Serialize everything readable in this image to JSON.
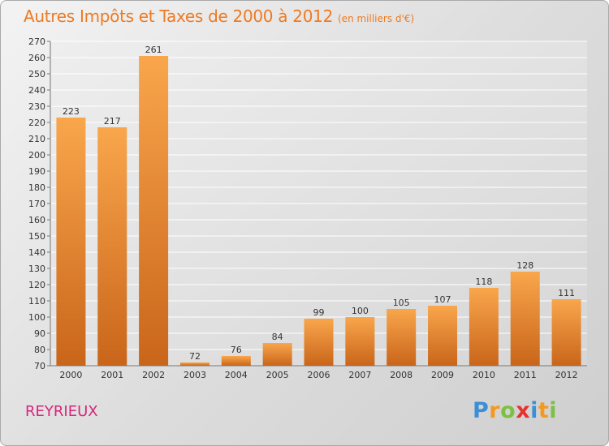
{
  "title": "Autres Impôts et Taxes de 2000 à 2012",
  "subtitle": "(en milliers d'€)",
  "commune": "REYRIEUX",
  "logo": {
    "letters": [
      {
        "ch": "P",
        "color": "#3b8fd9"
      },
      {
        "ch": "r",
        "color": "#f39a1e"
      },
      {
        "ch": "o",
        "color": "#7cc142"
      },
      {
        "ch": "x",
        "color": "#e8312e"
      },
      {
        "ch": "i",
        "color": "#3b8fd9"
      },
      {
        "ch": "t",
        "color": "#f39a1e"
      },
      {
        "ch": "i",
        "color": "#7cc142"
      }
    ]
  },
  "chart_data": {
    "type": "bar",
    "categories": [
      "2000",
      "2001",
      "2002",
      "2003",
      "2004",
      "2005",
      "2006",
      "2007",
      "2008",
      "2009",
      "2010",
      "2011",
      "2012"
    ],
    "values": [
      223,
      217,
      261,
      72,
      76,
      84,
      99,
      100,
      105,
      107,
      118,
      128,
      111
    ],
    "title": "Autres Impôts et Taxes de 2000 à 2012",
    "ylim": [
      70,
      270
    ],
    "ytick_step": 10,
    "grid": true,
    "bar_color": "#f28f2e"
  }
}
